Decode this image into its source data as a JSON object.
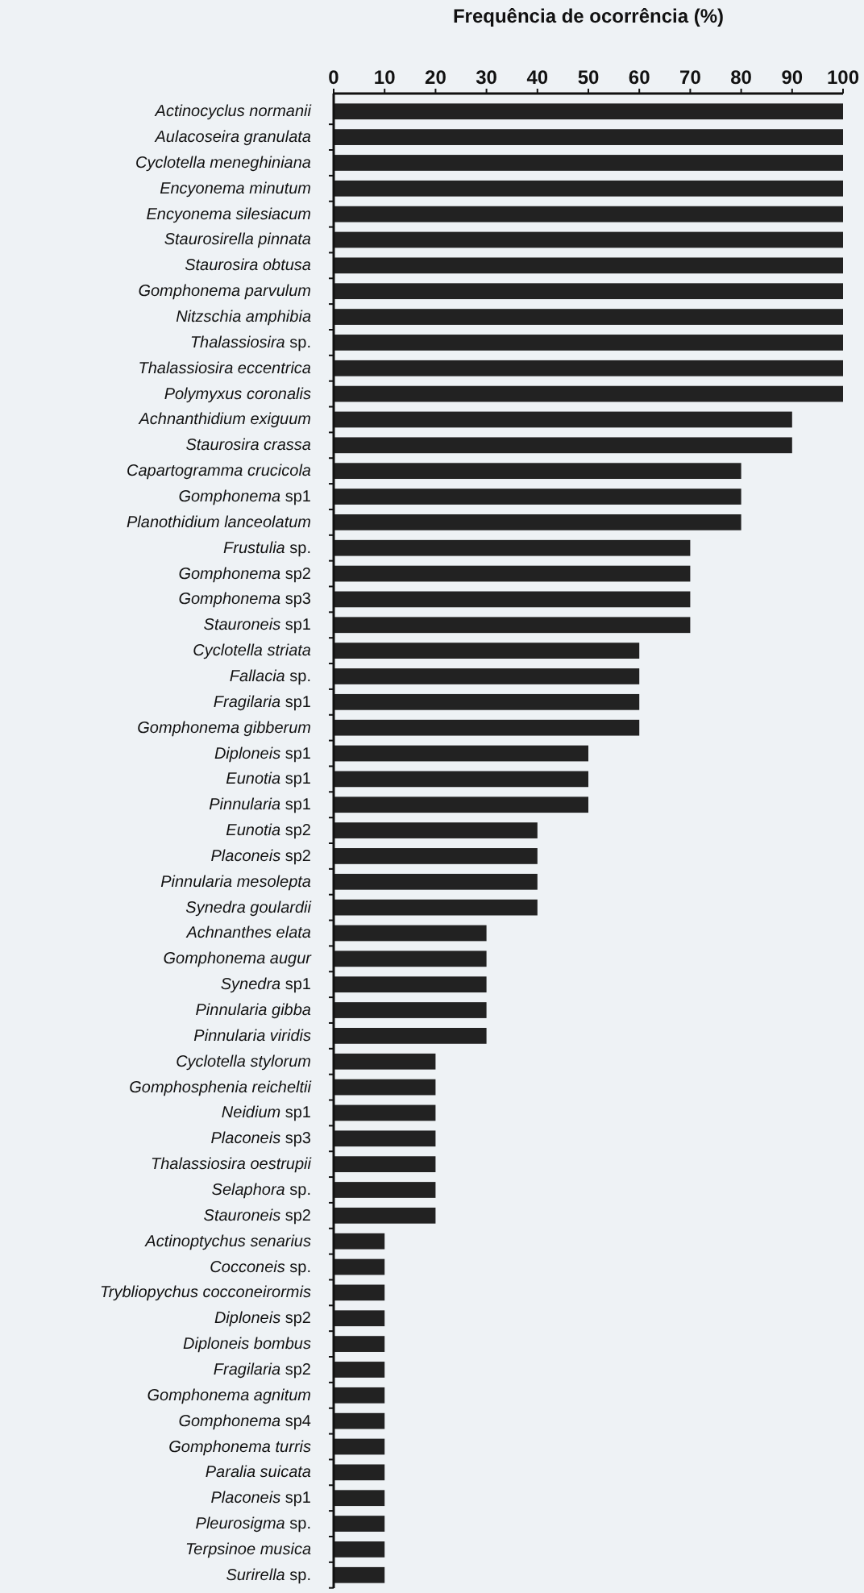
{
  "chart_data": {
    "type": "bar",
    "orientation": "horizontal",
    "title": "Frequência de ocorrência (%)",
    "categories": [
      "Actinocyclus normanii",
      "Aulacoseira granulata",
      "Cyclotella meneghiniana",
      "Encyonema minutum",
      "Encyonema silesiacum",
      "Staurosirella pinnata",
      "Staurosira obtusa",
      "Gomphonema parvulum",
      "Nitzschia amphibia",
      "Thalassiosira sp.",
      "Thalassiosira eccentrica",
      "Polymyxus coronalis",
      "Achnanthidium exiguum",
      "Staurosira crassa",
      "Capartogramma crucicola",
      "Gomphonema sp1",
      "Planothidium lanceolatum",
      "Frustulia sp.",
      "Gomphonema sp2",
      "Gomphonema sp3",
      "Stauroneis sp1",
      "Cyclotella striata",
      "Fallacia sp.",
      "Fragilaria sp1",
      "Gomphonema gibberum",
      "Diploneis sp1",
      "Eunotia sp1",
      "Pinnularia sp1",
      "Eunotia sp2",
      "Placoneis sp2",
      "Pinnularia mesolepta",
      "Synedra goulardii",
      "Achnanthes elata",
      "Gomphonema augur",
      "Synedra sp1",
      "Pinnularia gibba",
      "Pinnularia viridis",
      "Cyclotella stylorum",
      "Gomphosphenia reicheltii",
      "Neidium sp1",
      "Placoneis sp3",
      "Thalassiosira oestrupii",
      "Selaphora sp.",
      "Stauroneis sp2",
      "Actinoptychus senarius",
      "Cocconeis sp.",
      "Trybliopychus cocconeirormis",
      "Diploneis sp2",
      "Diploneis bombus",
      "Fragilaria sp2",
      "Gomphonema agnitum",
      "Gomphonema sp4",
      "Gomphonema turris",
      "Paralia suicata",
      "Placoneis sp1",
      "Pleurosigma sp.",
      "Terpsinoe musica",
      "Surirella sp."
    ],
    "values": [
      100,
      100,
      100,
      100,
      100,
      100,
      100,
      100,
      100,
      100,
      100,
      100,
      90,
      90,
      80,
      80,
      80,
      70,
      70,
      70,
      70,
      60,
      60,
      60,
      60,
      50,
      50,
      50,
      40,
      40,
      40,
      40,
      30,
      30,
      30,
      30,
      30,
      20,
      20,
      20,
      20,
      20,
      20,
      20,
      10,
      10,
      10,
      10,
      10,
      10,
      10,
      10,
      10,
      10,
      10,
      10,
      10,
      10
    ],
    "color": "#222222",
    "xlim": [
      0,
      100
    ],
    "xticks": [
      0,
      10,
      20,
      30,
      40,
      50,
      60,
      70,
      80,
      90,
      100
    ],
    "grid": false
  }
}
